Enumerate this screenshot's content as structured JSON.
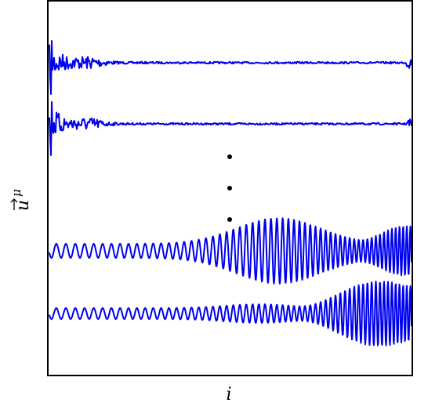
{
  "x_label": "i",
  "y_label": {
    "base": "u",
    "superscript": "μ"
  }
}
